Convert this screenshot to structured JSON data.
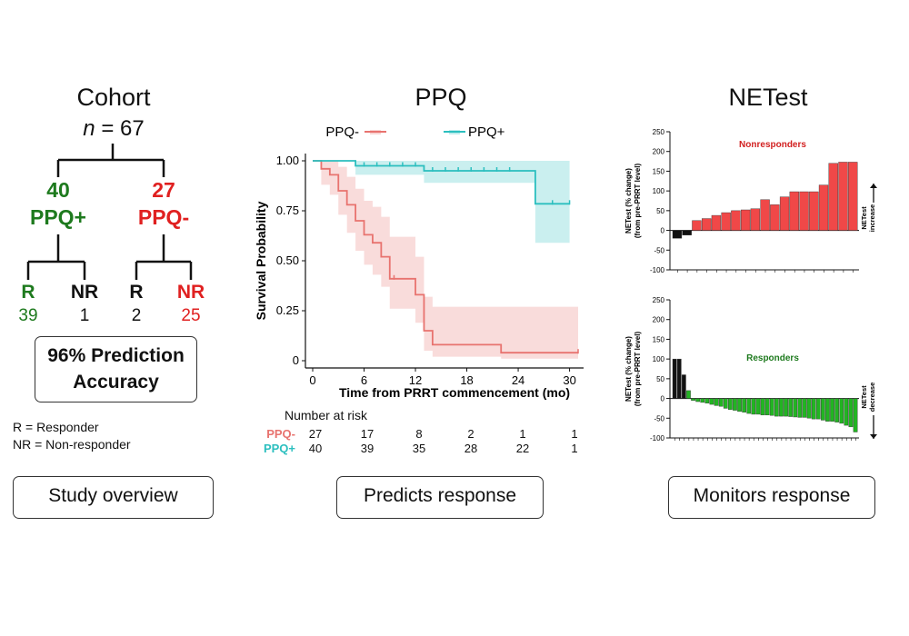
{
  "colors": {
    "green": "#1e7a1e",
    "red": "#e02020",
    "teal": "#2bbfbf",
    "pink": "#e8736f",
    "bar_red": "#f04848",
    "bar_green": "#22b422",
    "bar_black": "#111111"
  },
  "overview": {
    "title": "Cohort",
    "n_var": "n",
    "n_rest": " = 67",
    "pos_count": "40",
    "pos_label": "PPQ+",
    "neg_count": "27",
    "neg_label": "PPQ-",
    "leaves": [
      {
        "label": "R",
        "value": "39",
        "label_color": "green",
        "value_color": "green"
      },
      {
        "label": "NR",
        "value": "1",
        "label_color": "black",
        "value_color": "black"
      },
      {
        "label": "R",
        "value": "2",
        "label_color": "black",
        "value_color": "black"
      },
      {
        "label": "NR",
        "value": "25",
        "label_color": "red",
        "value_color": "red"
      }
    ],
    "accuracy_line1": "96% Prediction",
    "accuracy_line2": "Accuracy",
    "legend_r": "R = Responder",
    "legend_nr": "NR = Non-responder",
    "caption": "Study overview"
  },
  "ppq": {
    "title": "PPQ",
    "caption": "Predicts response",
    "risk_title": "Number at risk",
    "risk_rows": [
      {
        "label": "PPQ-",
        "counts": [
          "27",
          "17",
          "8",
          "2",
          "1",
          "1"
        ]
      },
      {
        "label": "PPQ+",
        "counts": [
          "40",
          "39",
          "35",
          "28",
          "22",
          "1"
        ]
      }
    ]
  },
  "netest": {
    "title": "NETest",
    "caption": "Monitors response"
  },
  "chart_data": [
    {
      "type": "line",
      "title": "",
      "xlabel": "Time from PRRT commencement (mo)",
      "ylabel": "Survival Probability",
      "xlim": [
        0,
        31
      ],
      "ylim": [
        0,
        1
      ],
      "xticks": [
        0,
        6,
        12,
        18,
        24,
        30
      ],
      "yticks": [
        "0",
        "0.25",
        "0.50",
        "0.75",
        "1.00"
      ],
      "legend": "top",
      "series": [
        {
          "name": "PPQ-",
          "color": "#e8736f",
          "x": [
            0,
            1,
            2,
            3,
            4,
            5,
            6,
            7,
            8,
            9,
            10,
            11,
            12,
            13,
            14,
            22,
            31
          ],
          "y": [
            1.0,
            0.96,
            0.93,
            0.85,
            0.78,
            0.7,
            0.63,
            0.59,
            0.52,
            0.41,
            0.41,
            0.41,
            0.33,
            0.15,
            0.08,
            0.04,
            0.04
          ],
          "lower": [
            1.0,
            0.88,
            0.83,
            0.73,
            0.64,
            0.55,
            0.48,
            0.43,
            0.37,
            0.26,
            0.26,
            0.26,
            0.19,
            0.05,
            0.02,
            0.01,
            0.01
          ],
          "upper": [
            1.0,
            1.0,
            1.0,
            0.97,
            0.92,
            0.86,
            0.8,
            0.77,
            0.72,
            0.62,
            0.62,
            0.62,
            0.52,
            0.32,
            0.27,
            0.27,
            0.27
          ]
        },
        {
          "name": "PPQ+",
          "color": "#2bbfbf",
          "x": [
            0,
            5,
            13,
            26,
            30
          ],
          "y": [
            1.0,
            0.975,
            0.95,
            0.785,
            0.785
          ],
          "lower": [
            1.0,
            0.93,
            0.89,
            0.59,
            0.59
          ],
          "upper": [
            1.0,
            1.0,
            1.0,
            1.0,
            1.0
          ]
        }
      ]
    },
    {
      "type": "bar",
      "title": "Nonresponders",
      "ylabel": "NETest (% change) (from pre-PRRT level)",
      "side_label": "NETest increase",
      "ylim": [
        -100,
        250
      ],
      "yticks": [
        -100,
        -50,
        0,
        50,
        100,
        150,
        200,
        250
      ],
      "values": [
        -20,
        -12,
        25,
        30,
        38,
        45,
        50,
        52,
        55,
        78,
        65,
        85,
        98,
        98,
        98,
        115,
        170,
        173,
        173
      ],
      "colors": [
        "black",
        "black",
        "red",
        "red",
        "red",
        "red",
        "red",
        "red",
        "red",
        "red",
        "red",
        "red",
        "red",
        "red",
        "red",
        "red",
        "red",
        "red",
        "red"
      ]
    },
    {
      "type": "bar",
      "title": "Responders",
      "ylabel": "NETest (% change) (from pre-PRRT level)",
      "side_label": "NETest decrease",
      "ylim": [
        -100,
        250
      ],
      "yticks": [
        -100,
        -50,
        0,
        50,
        100,
        150,
        200,
        250
      ],
      "values": [
        100,
        100,
        60,
        20,
        -5,
        -8,
        -10,
        -12,
        -15,
        -18,
        -20,
        -25,
        -28,
        -30,
        -33,
        -35,
        -38,
        -40,
        -40,
        -42,
        -42,
        -43,
        -45,
        -45,
        -45,
        -46,
        -47,
        -48,
        -48,
        -50,
        -52,
        -52,
        -55,
        -58,
        -58,
        -60,
        -63,
        -68,
        -72,
        -85
      ],
      "colors": [
        "black",
        "black",
        "black",
        "green",
        "green",
        "green",
        "green",
        "green",
        "green",
        "green",
        "green",
        "green",
        "green",
        "green",
        "green",
        "green",
        "green",
        "green",
        "green",
        "green",
        "green",
        "green",
        "green",
        "green",
        "green",
        "green",
        "green",
        "green",
        "green",
        "green",
        "green",
        "green",
        "green",
        "green",
        "green",
        "green",
        "green",
        "green",
        "green",
        "green"
      ]
    }
  ]
}
